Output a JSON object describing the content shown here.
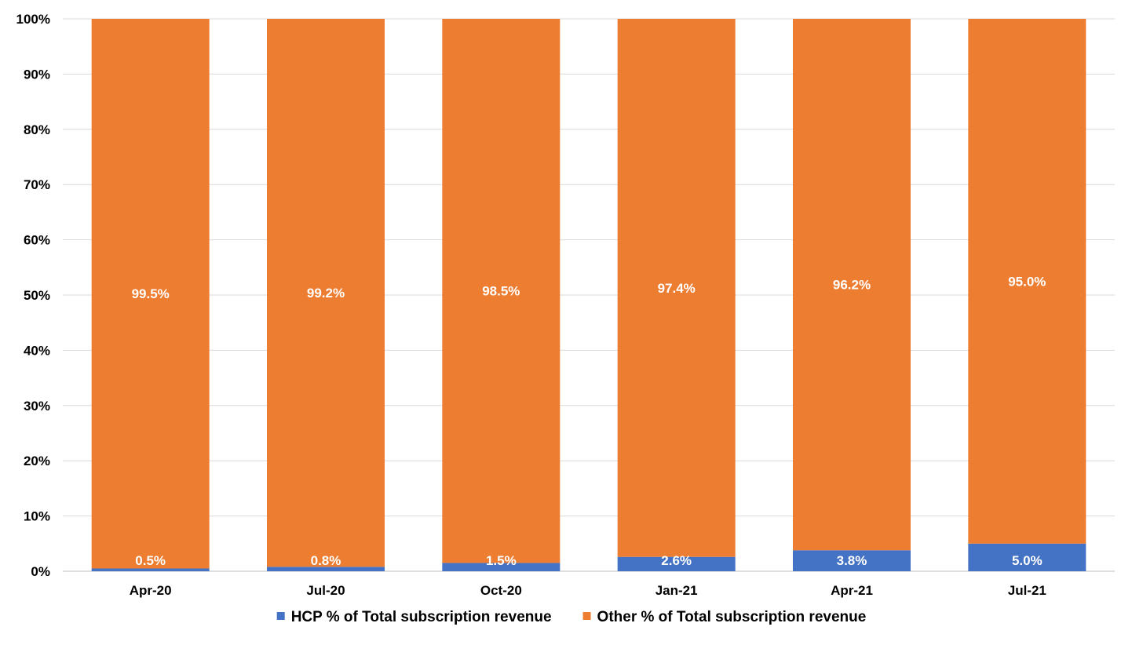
{
  "chart_data": {
    "type": "bar",
    "stacked": true,
    "percent_stacked": true,
    "title": "",
    "xlabel": "",
    "ylabel": "",
    "categories": [
      "Apr-20",
      "Jul-20",
      "Oct-20",
      "Jan-21",
      "Apr-21",
      "Jul-21"
    ],
    "series": [
      {
        "name": "HCP % of Total subscription revenue",
        "color": "#4472C4",
        "values": [
          0.5,
          0.8,
          1.5,
          2.6,
          3.8,
          5.0
        ],
        "labels": [
          "0.5%",
          "0.8%",
          "1.5%",
          "2.6%",
          "3.8%",
          "5.0%"
        ]
      },
      {
        "name": "Other % of Total subscription revenue",
        "color": "#ED7D31",
        "values": [
          99.5,
          99.2,
          98.5,
          97.4,
          96.2,
          95.0
        ],
        "labels": [
          "99.5%",
          "99.2%",
          "98.5%",
          "97.4%",
          "96.2%",
          "95.0%"
        ]
      }
    ],
    "ylim": [
      0,
      100
    ],
    "yticks": [
      "0%",
      "10%",
      "20%",
      "30%",
      "40%",
      "50%",
      "60%",
      "70%",
      "80%",
      "90%",
      "100%"
    ],
    "grid": true,
    "legend_position": "bottom"
  }
}
